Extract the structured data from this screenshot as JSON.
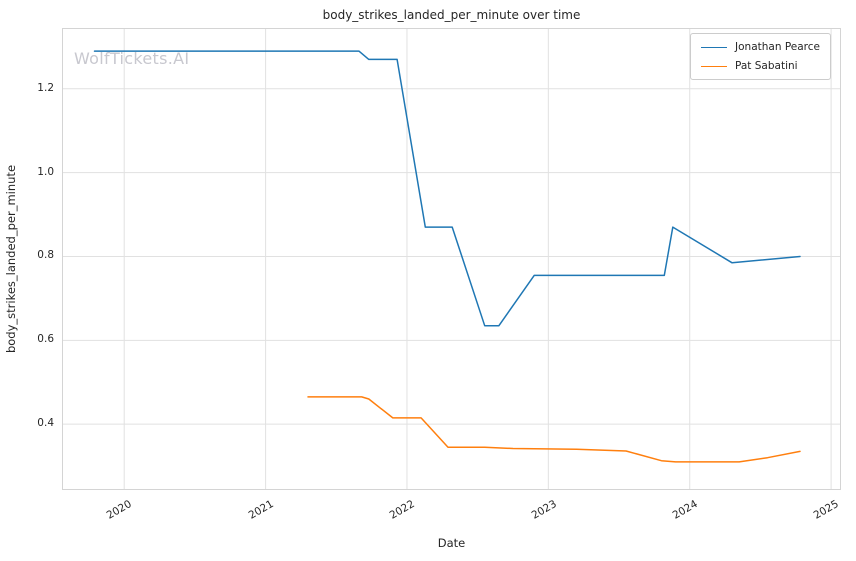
{
  "watermark": "WolfTickets.AI",
  "chart_data": {
    "type": "line",
    "title": "body_strikes_landed_per_minute over time",
    "xlabel": "Date",
    "ylabel": "body_strikes_landed_per_minute",
    "xlim": [
      2019.56,
      2025.07
    ],
    "ylim": [
      0.243,
      1.345
    ],
    "x_ticks": [
      2020,
      2021,
      2022,
      2023,
      2024,
      2025
    ],
    "y_ticks": [
      0.4,
      0.6,
      0.8,
      1.0,
      1.2
    ],
    "grid": true,
    "legend_position": "upper right",
    "colors": {
      "grid": "#e1e1e1",
      "spine": "#d4d4d4"
    },
    "series": [
      {
        "name": "Jonathan Pearce",
        "color": "#1f77b4",
        "points": [
          [
            2019.79,
            1.29
          ],
          [
            2021.66,
            1.29
          ],
          [
            2021.73,
            1.27
          ],
          [
            2021.93,
            1.27
          ],
          [
            2022.13,
            0.87
          ],
          [
            2022.32,
            0.87
          ],
          [
            2022.55,
            0.635
          ],
          [
            2022.65,
            0.635
          ],
          [
            2022.9,
            0.755
          ],
          [
            2023.82,
            0.755
          ],
          [
            2023.88,
            0.87
          ],
          [
            2024.3,
            0.785
          ],
          [
            2024.78,
            0.8
          ]
        ]
      },
      {
        "name": "Pat Sabatini",
        "color": "#ff7f0e",
        "points": [
          [
            2021.3,
            0.465
          ],
          [
            2021.68,
            0.465
          ],
          [
            2021.73,
            0.46
          ],
          [
            2021.9,
            0.415
          ],
          [
            2022.1,
            0.415
          ],
          [
            2022.29,
            0.345
          ],
          [
            2022.55,
            0.345
          ],
          [
            2022.75,
            0.342
          ],
          [
            2023.2,
            0.34
          ],
          [
            2023.55,
            0.336
          ],
          [
            2023.8,
            0.313
          ],
          [
            2023.9,
            0.31
          ],
          [
            2024.35,
            0.31
          ],
          [
            2024.55,
            0.32
          ],
          [
            2024.78,
            0.335
          ]
        ]
      }
    ]
  }
}
